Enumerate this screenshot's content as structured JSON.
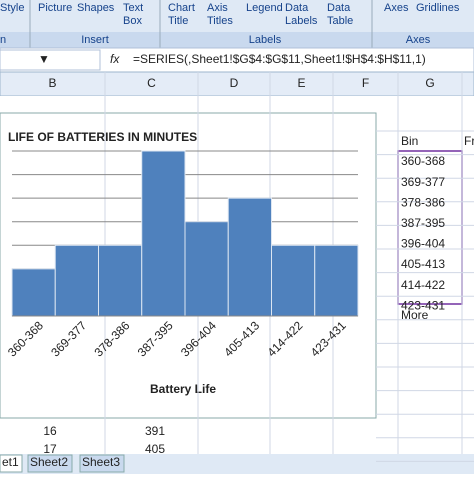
{
  "ribbon": {
    "buttons": [
      [
        "Style"
      ],
      [
        "Picture"
      ],
      [
        "Shapes"
      ],
      [
        "Text",
        "Box"
      ],
      [
        "Chart",
        "Title"
      ],
      [
        "Axis",
        "Titles"
      ],
      [
        "Legend"
      ],
      [
        "Data",
        "Labels"
      ],
      [
        "Data",
        "Table"
      ],
      [
        "Axes"
      ],
      [
        "Gridlines"
      ]
    ],
    "groups": [
      "n",
      "Insert",
      "Labels",
      "Axes"
    ]
  },
  "formula_bar": {
    "fx": "fx",
    "formula": "=SERIES(,Sheet1!$G$4:$G$11,Sheet1!$H$4:$H$11,1)"
  },
  "column_headers": [
    "B",
    "C",
    "D",
    "E",
    "F",
    "G"
  ],
  "chart_data": {
    "type": "bar",
    "title": "LIFE OF BATTERIES IN MINUTES",
    "x_label": "Battery Life",
    "categories": [
      "360-368",
      "369-377",
      "378-386",
      "387-395",
      "396-404",
      "405-413",
      "414-422",
      "423-431"
    ],
    "values": [
      2,
      3,
      3,
      7,
      4,
      5,
      3,
      3
    ],
    "color": "#4f81bd",
    "ylim": [
      0,
      7
    ],
    "yticks": [
      0,
      1,
      2,
      3,
      4,
      5,
      6,
      7
    ],
    "grid": true
  },
  "cells": {
    "bin_header": "Bin",
    "freq_header": "Fr",
    "bins": [
      "360-368",
      "369-377",
      "378-386",
      "387-395",
      "396-404",
      "405-413",
      "414-422",
      "423-431"
    ],
    "more": "More",
    "rows": [
      [
        "16",
        "391"
      ],
      [
        "17",
        "405"
      ]
    ]
  },
  "sheet_tabs": [
    "et1",
    "Sheet2",
    "Sheet3"
  ]
}
